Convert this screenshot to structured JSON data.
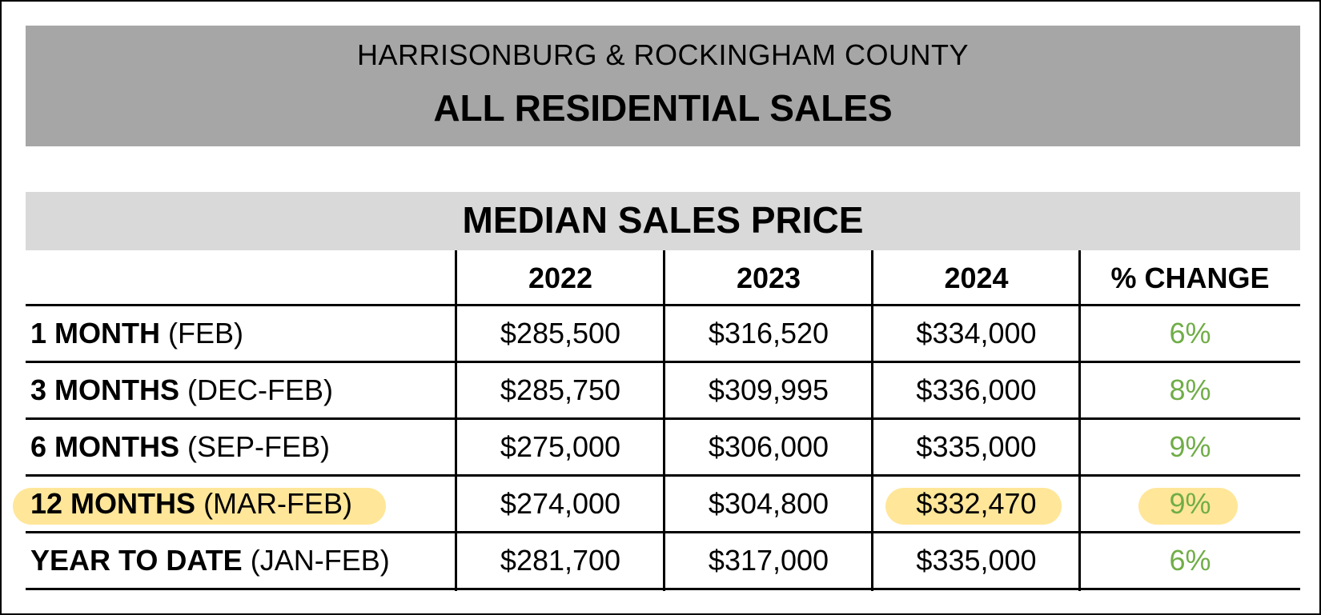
{
  "header": {
    "region": "HARRISONBURG & ROCKINGHAM COUNTY",
    "title": "ALL RESIDENTIAL SALES"
  },
  "section": {
    "title": "MEDIAN SALES PRICE"
  },
  "colors": {
    "header_band": "#a6a6a6",
    "section_band": "#d9d9d9",
    "highlight": "#ffe699",
    "percent_change": "#70ad47"
  },
  "chart_data": {
    "type": "table",
    "title": "MEDIAN SALES PRICE",
    "columns": [
      "",
      "2022",
      "2023",
      "2024",
      "% CHANGE"
    ],
    "rows": [
      {
        "period": "1 MONTH",
        "range": "(FEB)",
        "values": [
          "$285,500",
          "$316,520",
          "$334,000"
        ],
        "change": "6%",
        "highlighted": false
      },
      {
        "period": "3 MONTHS",
        "range": "(DEC-FEB)",
        "values": [
          "$285,750",
          "$309,995",
          "$336,000"
        ],
        "change": "8%",
        "highlighted": false
      },
      {
        "period": "6 MONTHS",
        "range": "(SEP-FEB)",
        "values": [
          "$275,000",
          "$306,000",
          "$335,000"
        ],
        "change": "9%",
        "highlighted": false
      },
      {
        "period": "12 MONTHS",
        "range": "(MAR-FEB)",
        "values": [
          "$274,000",
          "$304,800",
          "$332,470"
        ],
        "change": "9%",
        "highlighted": true
      },
      {
        "period": "YEAR TO DATE",
        "range": "(JAN-FEB)",
        "values": [
          "$281,700",
          "$317,000",
          "$335,000"
        ],
        "change": "6%",
        "highlighted": false
      }
    ]
  }
}
